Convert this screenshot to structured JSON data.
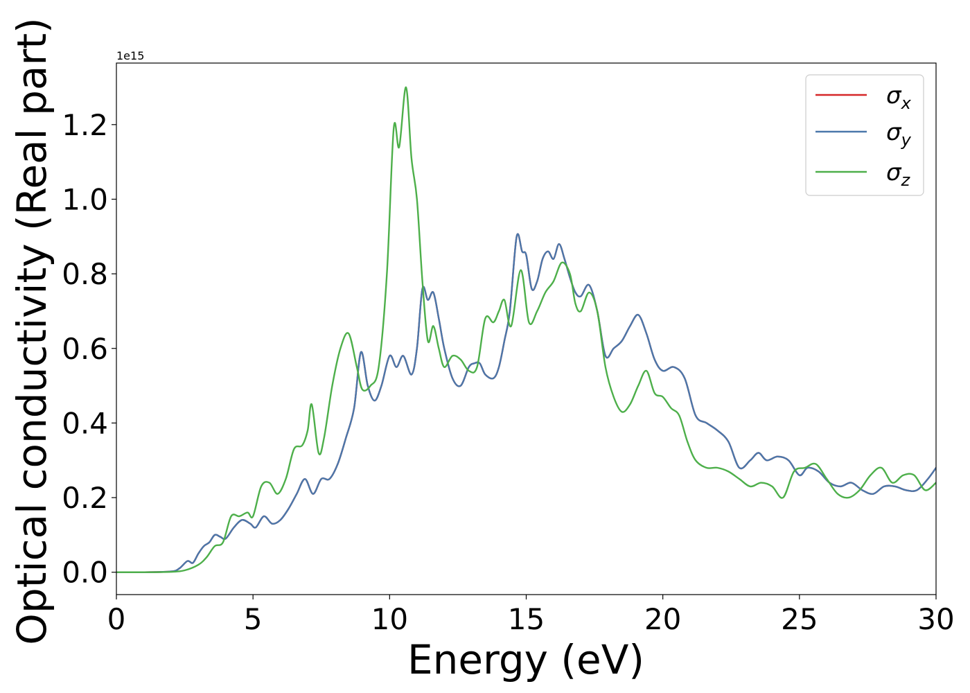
{
  "chart_data": {
    "type": "line",
    "title": "",
    "xlabel": "Energy (eV)",
    "ylabel": "Optical conductivity (Real part)",
    "y_offset_label": "1e15",
    "xlim": [
      0,
      30
    ],
    "ylim": [
      -0.06,
      1.365
    ],
    "xticks": [
      0,
      5,
      10,
      15,
      20,
      25,
      30
    ],
    "xtick_labels": [
      "0",
      "5",
      "10",
      "15",
      "20",
      "25",
      "30"
    ],
    "yticks": [
      0.0,
      0.2,
      0.4,
      0.6,
      0.8,
      1.0,
      1.2
    ],
    "ytick_labels": [
      "0.0",
      "0.2",
      "0.4",
      "0.6",
      "0.8",
      "1.0",
      "1.2"
    ],
    "grid": false,
    "legend_position": "top-right",
    "series": [
      {
        "name": "σx",
        "name_base": "σ",
        "name_sub": "x",
        "color": "#d62728",
        "x": [
          0,
          1,
          2,
          2.3,
          2.6,
          2.8,
          3.0,
          3.2,
          3.4,
          3.6,
          3.8,
          4.0,
          4.3,
          4.6,
          4.9,
          5.1,
          5.4,
          5.7,
          6.0,
          6.3,
          6.6,
          6.9,
          7.2,
          7.5,
          7.8,
          8.1,
          8.4,
          8.7,
          8.95,
          9.2,
          9.45,
          9.7,
          10.0,
          10.25,
          10.5,
          10.8,
          11.0,
          11.2,
          11.4,
          11.6,
          11.8,
          12.0,
          12.3,
          12.6,
          12.9,
          13.1,
          13.3,
          13.5,
          13.8,
          14.0,
          14.2,
          14.4,
          14.65,
          14.85,
          15.0,
          15.2,
          15.4,
          15.6,
          15.8,
          16.0,
          16.2,
          16.4,
          16.6,
          16.8,
          17.0,
          17.3,
          17.6,
          17.9,
          18.2,
          18.5,
          18.8,
          19.1,
          19.4,
          19.7,
          20.0,
          20.4,
          20.8,
          21.2,
          21.6,
          22.0,
          22.4,
          22.8,
          23.2,
          23.5,
          23.8,
          24.2,
          24.6,
          25.0,
          25.3,
          25.7,
          26.1,
          26.5,
          26.9,
          27.3,
          27.7,
          28.1,
          28.5,
          28.9,
          29.3,
          29.7,
          30.0
        ],
        "y": [
          0,
          0,
          0.002,
          0.01,
          0.03,
          0.025,
          0.05,
          0.07,
          0.08,
          0.1,
          0.095,
          0.09,
          0.12,
          0.14,
          0.13,
          0.12,
          0.15,
          0.13,
          0.14,
          0.17,
          0.21,
          0.25,
          0.21,
          0.25,
          0.25,
          0.29,
          0.36,
          0.44,
          0.59,
          0.5,
          0.46,
          0.5,
          0.58,
          0.55,
          0.58,
          0.53,
          0.6,
          0.76,
          0.73,
          0.75,
          0.68,
          0.6,
          0.52,
          0.5,
          0.55,
          0.56,
          0.56,
          0.53,
          0.52,
          0.55,
          0.62,
          0.7,
          0.9,
          0.86,
          0.85,
          0.76,
          0.78,
          0.84,
          0.86,
          0.84,
          0.88,
          0.84,
          0.79,
          0.75,
          0.74,
          0.77,
          0.7,
          0.58,
          0.6,
          0.62,
          0.66,
          0.69,
          0.64,
          0.57,
          0.54,
          0.55,
          0.52,
          0.42,
          0.4,
          0.38,
          0.35,
          0.28,
          0.3,
          0.32,
          0.3,
          0.31,
          0.3,
          0.26,
          0.28,
          0.27,
          0.24,
          0.23,
          0.24,
          0.22,
          0.21,
          0.23,
          0.23,
          0.22,
          0.22,
          0.25,
          0.28
        ]
      },
      {
        "name": "σy",
        "name_base": "σ",
        "name_sub": "y",
        "color": "#4a77aa",
        "x": [
          0,
          1,
          2,
          2.3,
          2.6,
          2.8,
          3.0,
          3.2,
          3.4,
          3.6,
          3.8,
          4.0,
          4.3,
          4.6,
          4.9,
          5.1,
          5.4,
          5.7,
          6.0,
          6.3,
          6.6,
          6.9,
          7.2,
          7.5,
          7.8,
          8.1,
          8.4,
          8.7,
          8.95,
          9.2,
          9.45,
          9.7,
          10.0,
          10.25,
          10.5,
          10.8,
          11.0,
          11.2,
          11.4,
          11.6,
          11.8,
          12.0,
          12.3,
          12.6,
          12.9,
          13.1,
          13.3,
          13.5,
          13.8,
          14.0,
          14.2,
          14.4,
          14.65,
          14.85,
          15.0,
          15.2,
          15.4,
          15.6,
          15.8,
          16.0,
          16.2,
          16.4,
          16.6,
          16.8,
          17.0,
          17.3,
          17.6,
          17.9,
          18.2,
          18.5,
          18.8,
          19.1,
          19.4,
          19.7,
          20.0,
          20.4,
          20.8,
          21.2,
          21.6,
          22.0,
          22.4,
          22.8,
          23.2,
          23.5,
          23.8,
          24.2,
          24.6,
          25.0,
          25.3,
          25.7,
          26.1,
          26.5,
          26.9,
          27.3,
          27.7,
          28.1,
          28.5,
          28.9,
          29.3,
          29.7,
          30.0
        ],
        "y": [
          0,
          0,
          0.002,
          0.01,
          0.03,
          0.025,
          0.05,
          0.07,
          0.08,
          0.1,
          0.095,
          0.09,
          0.12,
          0.14,
          0.13,
          0.12,
          0.15,
          0.13,
          0.14,
          0.17,
          0.21,
          0.25,
          0.21,
          0.25,
          0.25,
          0.29,
          0.36,
          0.44,
          0.59,
          0.5,
          0.46,
          0.5,
          0.58,
          0.55,
          0.58,
          0.53,
          0.6,
          0.76,
          0.73,
          0.75,
          0.68,
          0.6,
          0.52,
          0.5,
          0.55,
          0.56,
          0.56,
          0.53,
          0.52,
          0.55,
          0.62,
          0.7,
          0.9,
          0.86,
          0.85,
          0.76,
          0.78,
          0.84,
          0.86,
          0.84,
          0.88,
          0.84,
          0.79,
          0.75,
          0.74,
          0.77,
          0.7,
          0.58,
          0.6,
          0.62,
          0.66,
          0.69,
          0.64,
          0.57,
          0.54,
          0.55,
          0.52,
          0.42,
          0.4,
          0.38,
          0.35,
          0.28,
          0.3,
          0.32,
          0.3,
          0.31,
          0.3,
          0.26,
          0.28,
          0.27,
          0.24,
          0.23,
          0.24,
          0.22,
          0.21,
          0.23,
          0.23,
          0.22,
          0.22,
          0.25,
          0.28
        ]
      },
      {
        "name": "σz",
        "name_base": "σ",
        "name_sub": "z",
        "color": "#4daf4a",
        "x": [
          0,
          1,
          2,
          2.5,
          3.0,
          3.3,
          3.6,
          3.9,
          4.2,
          4.5,
          4.8,
          5.0,
          5.3,
          5.6,
          5.9,
          6.2,
          6.5,
          6.8,
          7.0,
          7.15,
          7.4,
          7.6,
          7.9,
          8.2,
          8.5,
          8.8,
          9.0,
          9.3,
          9.6,
          9.9,
          10.15,
          10.35,
          10.6,
          10.8,
          11.0,
          11.2,
          11.4,
          11.6,
          11.8,
          12.0,
          12.3,
          12.6,
          12.9,
          13.2,
          13.5,
          13.8,
          14.0,
          14.2,
          14.45,
          14.8,
          15.1,
          15.4,
          15.7,
          16.0,
          16.3,
          16.6,
          16.8,
          17.0,
          17.3,
          17.6,
          17.9,
          18.2,
          18.5,
          18.8,
          19.1,
          19.4,
          19.7,
          20.0,
          20.3,
          20.6,
          20.9,
          21.2,
          21.6,
          22.0,
          22.4,
          22.8,
          23.2,
          23.6,
          24.0,
          24.4,
          24.8,
          25.2,
          25.6,
          26.0,
          26.4,
          26.8,
          27.2,
          27.6,
          28.0,
          28.4,
          28.8,
          29.2,
          29.6,
          30.0
        ],
        "y": [
          0,
          0,
          0.001,
          0.005,
          0.02,
          0.04,
          0.07,
          0.08,
          0.15,
          0.15,
          0.16,
          0.15,
          0.23,
          0.24,
          0.21,
          0.25,
          0.33,
          0.34,
          0.38,
          0.45,
          0.32,
          0.36,
          0.5,
          0.6,
          0.64,
          0.55,
          0.49,
          0.5,
          0.55,
          0.8,
          1.19,
          1.14,
          1.3,
          1.11,
          1.0,
          0.78,
          0.62,
          0.66,
          0.6,
          0.55,
          0.58,
          0.57,
          0.54,
          0.55,
          0.68,
          0.67,
          0.7,
          0.73,
          0.66,
          0.81,
          0.67,
          0.7,
          0.75,
          0.78,
          0.83,
          0.8,
          0.72,
          0.7,
          0.75,
          0.7,
          0.55,
          0.47,
          0.43,
          0.45,
          0.5,
          0.54,
          0.48,
          0.47,
          0.44,
          0.42,
          0.35,
          0.3,
          0.28,
          0.28,
          0.27,
          0.25,
          0.23,
          0.24,
          0.23,
          0.2,
          0.27,
          0.28,
          0.29,
          0.25,
          0.21,
          0.2,
          0.22,
          0.26,
          0.28,
          0.24,
          0.26,
          0.26,
          0.22,
          0.24
        ]
      }
    ]
  }
}
